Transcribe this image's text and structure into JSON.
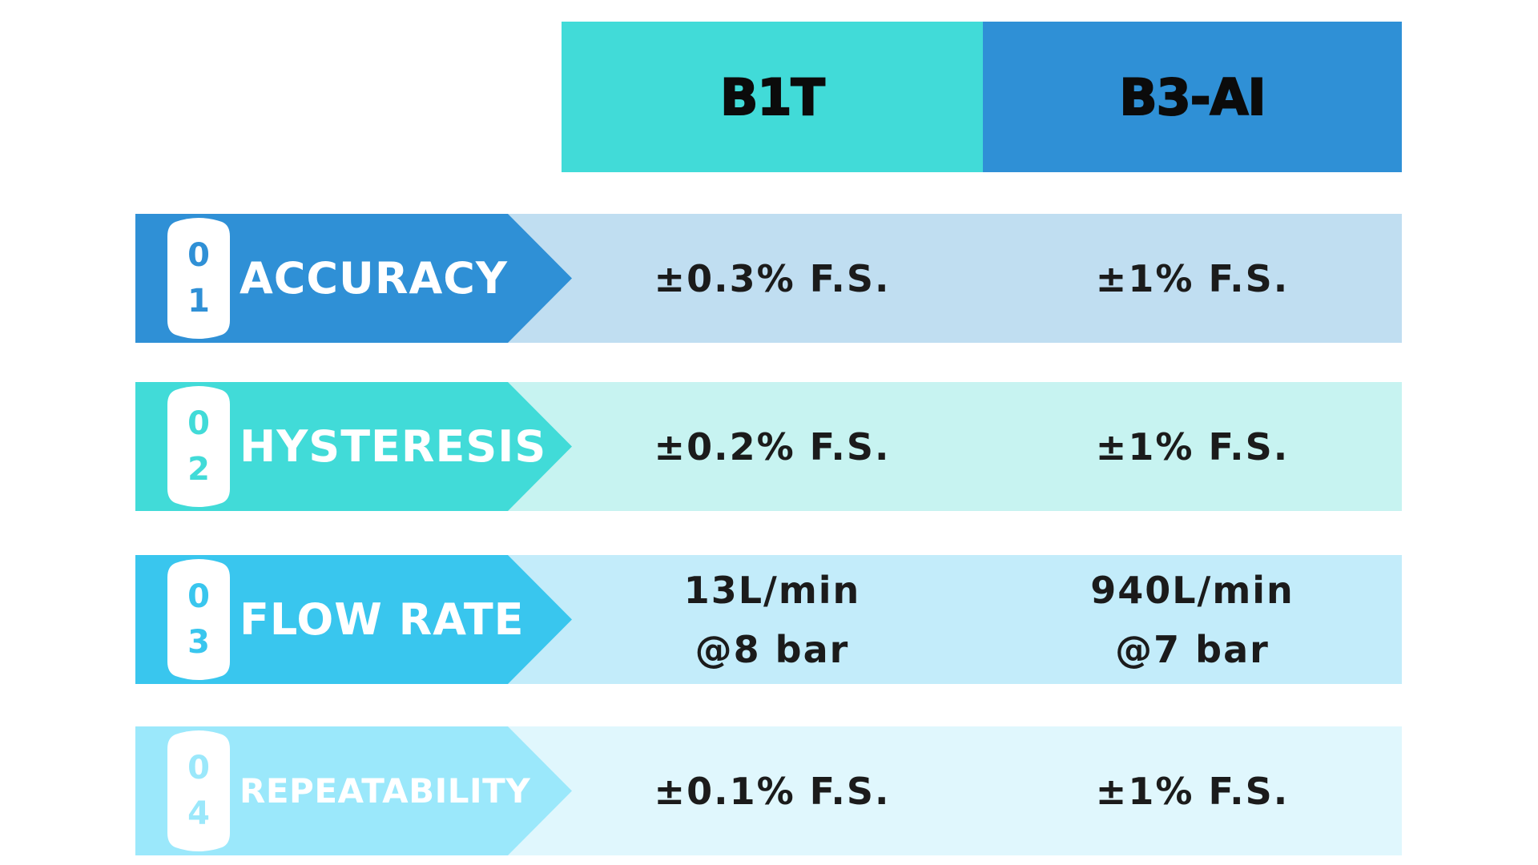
{
  "colors": {
    "col1_header": "#41dbd8",
    "col2_header": "#2f90d6",
    "row1_tab": "#2f90d6",
    "row1_bg": "#c0def1",
    "row2_tab": "#41dbd8",
    "row2_bg": "#c7f3f1",
    "row3_tab": "#39c6ee",
    "row3_bg": "#c3ecfa",
    "row4_tab": "#9be8fb",
    "row4_bg": "#e0f7fd"
  },
  "header": {
    "col1": "B1T",
    "col2": "B3-AI"
  },
  "rows": [
    {
      "num1": "0",
      "num2": "1",
      "label": "ACCURACY",
      "b1t": [
        "±0.3% F.S."
      ],
      "b3ai": [
        "±1% F.S."
      ]
    },
    {
      "num1": "0",
      "num2": "2",
      "label": "HYSTERESIS",
      "b1t": [
        "±0.2% F.S."
      ],
      "b3ai": [
        "±1% F.S."
      ]
    },
    {
      "num1": "0",
      "num2": "3",
      "label": "FLOW RATE",
      "b1t": [
        "13L/min",
        "@8 bar"
      ],
      "b3ai": [
        "940L/min",
        "@7 bar"
      ]
    },
    {
      "num1": "0",
      "num2": "4",
      "label": "REPEATABILITY",
      "b1t": [
        "±0.1% F.S."
      ],
      "b3ai": [
        "±1% F.S."
      ]
    }
  ]
}
